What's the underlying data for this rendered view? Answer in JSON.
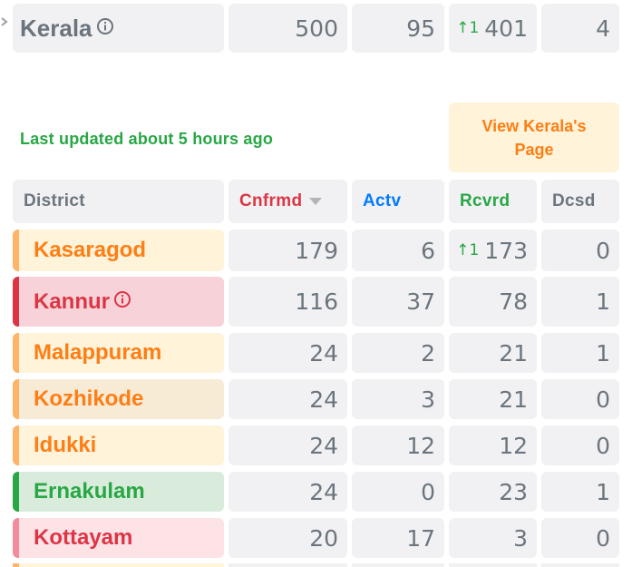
{
  "state_row": {
    "name": "Kerala",
    "confirmed": "500",
    "active": "95",
    "recovered_delta": "↑1",
    "recovered": "401",
    "deceased": "4"
  },
  "last_updated": "Last updated about 5 hours ago",
  "view_page_label": "View Kerala's Page",
  "headers": {
    "district": "District",
    "confirmed": "Cnfrmd",
    "active": "Actv",
    "recovered": "Rcvrd",
    "deceased": "Dcsd"
  },
  "colors": {
    "confirmed": "#dc3545",
    "active": "#007bff",
    "recovered": "#28a745",
    "deceased": "#6c757d",
    "orange": "#fd7e14"
  },
  "districts": [
    {
      "name": "Kasaragod",
      "confirmed": "179",
      "active": "6",
      "recovered_delta": "↑1",
      "recovered": "173",
      "deceased": "0"
    },
    {
      "name": "Kannur",
      "confirmed": "116",
      "active": "37",
      "recovered_delta": "",
      "recovered": "78",
      "deceased": "1"
    },
    {
      "name": "Malappuram",
      "confirmed": "24",
      "active": "2",
      "recovered_delta": "",
      "recovered": "21",
      "deceased": "1"
    },
    {
      "name": "Kozhikode",
      "confirmed": "24",
      "active": "3",
      "recovered_delta": "",
      "recovered": "21",
      "deceased": "0"
    },
    {
      "name": "Idukki",
      "confirmed": "24",
      "active": "12",
      "recovered_delta": "",
      "recovered": "12",
      "deceased": "0"
    },
    {
      "name": "Ernakulam",
      "confirmed": "24",
      "active": "0",
      "recovered_delta": "",
      "recovered": "23",
      "deceased": "1"
    },
    {
      "name": "Kottayam",
      "confirmed": "20",
      "active": "17",
      "recovered_delta": "",
      "recovered": "3",
      "deceased": "0"
    }
  ]
}
